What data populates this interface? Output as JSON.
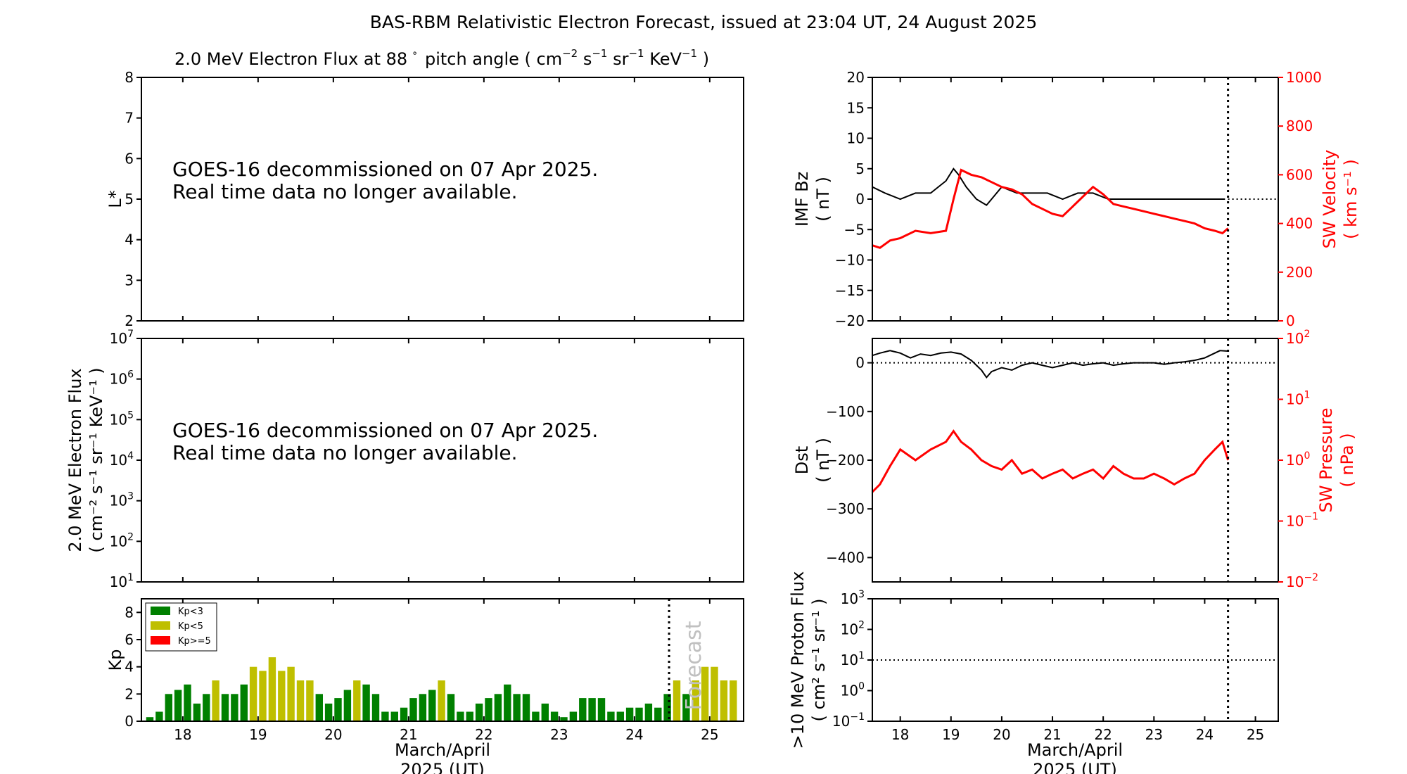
{
  "figure": {
    "title": "BAS-RBM Relativistic Electron Forecast, issued at 23:04 UT, 24 August 2025"
  },
  "colors": {
    "axis": "#000000",
    "sw": "#ff0000",
    "kp_low": "#008000",
    "kp_mid": "#bfbf00",
    "kp_high": "#ff0000",
    "forecast_text": "#c0c0c0"
  },
  "chart_data": [
    {
      "id": "lstar",
      "type": "heatmap",
      "title": "2.0 MeV Electron Flux at 88° pitch angle ( cm^-2 s^-1 sr^-1 KeV^-1 )",
      "title_main": "2.0 MeV Electron Flux at 88",
      "title_deg": "∘",
      "title_rest": "pitch angle ( cm",
      "title_units": [
        {
          "base": " cm",
          "exp": "−2"
        },
        {
          "base": " s",
          "exp": "−1"
        },
        {
          "base": " sr",
          "exp": "−1"
        },
        {
          "base": " KeV",
          "exp": "−1"
        }
      ],
      "ylabel": "L*",
      "ylim": [
        2,
        8
      ],
      "yticks": [
        "2",
        "3",
        "4",
        "5",
        "6",
        "7",
        "8"
      ],
      "message": [
        "GOES-16 decommissioned on 07 Apr 2025.",
        "Real time data no longer available."
      ]
    },
    {
      "id": "flux",
      "type": "heatmap",
      "ylabel": "2.0 MeV Electron Flux",
      "ylabel_units": "( cm⁻² s⁻¹ sr⁻¹ KeV⁻¹ )",
      "yscale": "log",
      "ylim": [
        10,
        10000000
      ],
      "yticks": [
        {
          "base": "10",
          "exp": "1"
        },
        {
          "base": "10",
          "exp": "2"
        },
        {
          "base": "10",
          "exp": "3"
        },
        {
          "base": "10",
          "exp": "4"
        },
        {
          "base": "10",
          "exp": "5"
        },
        {
          "base": "10",
          "exp": "6"
        },
        {
          "base": "10",
          "exp": "7"
        }
      ],
      "message": [
        "GOES-16 decommissioned on 07 Apr 2025.",
        "Real time data no longer available."
      ]
    },
    {
      "id": "kp",
      "type": "bar",
      "ylabel": "Kp",
      "ylim": [
        0,
        9
      ],
      "yticks": [
        "0",
        "2",
        "4",
        "6",
        "8"
      ],
      "xlabel": "March/April\n2025 (UT)",
      "xlabel_lines": [
        "March/April",
        "2025 (UT)"
      ],
      "xticks": [
        "18",
        "19",
        "20",
        "21",
        "22",
        "23",
        "24",
        "25"
      ],
      "xrange": [
        17.45,
        25.45
      ],
      "forecast_line_x": 24.46,
      "forecast_label": "Forecast",
      "legend": [
        {
          "label": "Kp<3",
          "color": "#008000"
        },
        {
          "label": "Kp<5",
          "color": "#bfbf00"
        },
        {
          "label": "Kp>=5",
          "color": "#ff0000"
        }
      ],
      "bar_start": 17.5,
      "bar_width_days": 0.125,
      "values": [
        0.3,
        0.7,
        2.0,
        2.3,
        2.7,
        1.3,
        2.0,
        3.0,
        2.0,
        2.0,
        2.7,
        4.0,
        3.7,
        4.7,
        3.7,
        4.0,
        3.0,
        3.0,
        2.0,
        1.3,
        1.7,
        2.3,
        3.0,
        2.7,
        2.0,
        0.7,
        0.7,
        1.0,
        1.7,
        2.0,
        2.3,
        3.0,
        2.0,
        0.7,
        0.7,
        1.3,
        1.7,
        2.0,
        2.7,
        2.0,
        2.0,
        0.7,
        1.3,
        0.7,
        0.3,
        0.7,
        1.7,
        1.7,
        1.7,
        0.7,
        0.7,
        1.0,
        1.0,
        1.3,
        1.0,
        2.0,
        3.0,
        2.0,
        3.0,
        4.0,
        4.0,
        3.0,
        3.0
      ]
    },
    {
      "id": "imf",
      "type": "line",
      "ylabel": "IMF Bz",
      "ylabel_units": "( nT )",
      "ylim": [
        -20,
        20
      ],
      "yticks": [
        "−20",
        "−15",
        "−10",
        "−5",
        "0",
        "5",
        "10",
        "15",
        "20"
      ],
      "y2label": "SW Velocity",
      "y2label_units": "( km s⁻¹ )",
      "y2lim": [
        0,
        1000
      ],
      "y2ticks": [
        "0",
        "200",
        "400",
        "600",
        "800",
        "1000"
      ],
      "xrange": [
        17.45,
        25.45
      ],
      "xticks": [
        "18",
        "19",
        "20",
        "21",
        "22",
        "23",
        "24",
        "25"
      ],
      "now_x": 24.46,
      "series": [
        {
          "kind": "bz",
          "color": "#000000",
          "x": [
            17.45,
            17.7,
            18.0,
            18.3,
            18.6,
            18.9,
            19.05,
            19.15,
            19.3,
            19.5,
            19.7,
            20.0,
            20.3,
            20.6,
            20.9,
            21.2,
            21.5,
            21.8,
            22.1,
            22.4,
            22.7,
            23.0,
            23.3,
            23.6,
            23.9,
            24.2,
            24.4
          ],
          "y": [
            2,
            1,
            0,
            1,
            1,
            3,
            5,
            4,
            2,
            0,
            -1,
            2,
            1,
            1,
            1,
            0,
            1,
            1,
            0,
            0,
            0,
            0,
            0,
            0,
            0,
            0,
            0
          ]
        },
        {
          "kind": "vsw",
          "color": "#ff0000",
          "x": [
            17.45,
            17.6,
            17.8,
            18.0,
            18.3,
            18.6,
            18.9,
            19.05,
            19.2,
            19.4,
            19.6,
            19.8,
            20.0,
            20.2,
            20.4,
            20.6,
            20.8,
            21.0,
            21.2,
            21.4,
            21.6,
            21.8,
            22.0,
            22.2,
            22.4,
            22.6,
            22.8,
            23.0,
            23.2,
            23.4,
            23.6,
            23.8,
            24.0,
            24.2,
            24.35,
            24.46
          ],
          "y": [
            310,
            300,
            330,
            340,
            370,
            360,
            370,
            500,
            620,
            600,
            590,
            570,
            550,
            540,
            520,
            480,
            460,
            440,
            430,
            470,
            510,
            550,
            520,
            480,
            470,
            460,
            450,
            440,
            430,
            420,
            410,
            400,
            380,
            370,
            360,
            380
          ]
        }
      ]
    },
    {
      "id": "dst",
      "type": "line",
      "ylabel": "Dst",
      "ylabel_units": "( nT )",
      "ylim": [
        -450,
        50
      ],
      "yticks": [
        "−400",
        "−300",
        "−200",
        "−100",
        "0"
      ],
      "y2label": "SW Pressure",
      "y2label_units": "( nPa )",
      "y2scale": "log",
      "y2lim": [
        0.01,
        100
      ],
      "y2ticks": [
        {
          "base": "10",
          "exp": "−2"
        },
        {
          "base": "10",
          "exp": "−1"
        },
        {
          "base": "10",
          "exp": "0"
        },
        {
          "base": "10",
          "exp": "1"
        },
        {
          "base": "10",
          "exp": "2"
        }
      ],
      "xrange": [
        17.45,
        25.45
      ],
      "xticks": [
        "18",
        "19",
        "20",
        "21",
        "22",
        "23",
        "24",
        "25"
      ],
      "now_x": 24.46,
      "series": [
        {
          "kind": "dst",
          "color": "#000000",
          "x": [
            17.45,
            17.6,
            17.8,
            18.0,
            18.2,
            18.4,
            18.6,
            18.8,
            19.0,
            19.2,
            19.4,
            19.6,
            19.7,
            19.8,
            20.0,
            20.2,
            20.4,
            20.6,
            20.8,
            21.0,
            21.2,
            21.4,
            21.6,
            21.8,
            22.0,
            22.2,
            22.4,
            22.6,
            22.8,
            23.0,
            23.2,
            23.4,
            23.6,
            23.8,
            24.0,
            24.2,
            24.3,
            24.46
          ],
          "y": [
            15,
            20,
            25,
            20,
            10,
            18,
            15,
            20,
            22,
            18,
            5,
            -15,
            -30,
            -18,
            -10,
            -15,
            -5,
            0,
            -5,
            -10,
            -5,
            0,
            -5,
            -2,
            0,
            -5,
            -2,
            0,
            0,
            0,
            -3,
            0,
            2,
            5,
            10,
            20,
            25,
            24
          ]
        },
        {
          "kind": "pdyn",
          "color": "#ff0000",
          "x": [
            17.45,
            17.6,
            17.8,
            18.0,
            18.3,
            18.6,
            18.9,
            19.05,
            19.2,
            19.4,
            19.6,
            19.8,
            20.0,
            20.2,
            20.4,
            20.6,
            20.8,
            21.0,
            21.2,
            21.4,
            21.6,
            21.8,
            22.0,
            22.2,
            22.4,
            22.6,
            22.8,
            23.0,
            23.2,
            23.4,
            23.6,
            23.8,
            24.0,
            24.2,
            24.35,
            24.46
          ],
          "y": [
            0.3,
            0.4,
            0.8,
            1.5,
            1.0,
            1.5,
            2.0,
            3.0,
            2.0,
            1.5,
            1.0,
            0.8,
            0.7,
            1.0,
            0.6,
            0.7,
            0.5,
            0.6,
            0.7,
            0.5,
            0.6,
            0.7,
            0.5,
            0.8,
            0.6,
            0.5,
            0.5,
            0.6,
            0.5,
            0.4,
            0.5,
            0.6,
            1.0,
            1.5,
            2.0,
            1.0
          ]
        }
      ]
    },
    {
      "id": "proton",
      "type": "line",
      "ylabel": ">10 MeV Proton Flux",
      "ylabel_units": "( cm² s⁻¹ sr⁻¹ )",
      "yscale": "log",
      "ylim": [
        0.1,
        1000
      ],
      "yticks": [
        {
          "base": "10",
          "exp": "−1"
        },
        {
          "base": "10",
          "exp": "0"
        },
        {
          "base": "10",
          "exp": "1"
        },
        {
          "base": "10",
          "exp": "2"
        },
        {
          "base": "10",
          "exp": "3"
        }
      ],
      "threshold": 10,
      "xlabel_lines": [
        "March/April",
        "2025 (UT)"
      ],
      "xrange": [
        17.45,
        25.45
      ],
      "xticks": [
        "18",
        "19",
        "20",
        "21",
        "22",
        "23",
        "24",
        "25"
      ],
      "now_x": 24.46
    }
  ]
}
